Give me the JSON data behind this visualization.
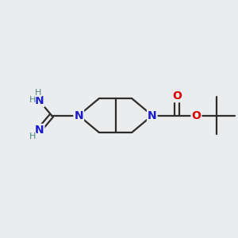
{
  "background_color": "#eaeced",
  "bond_color": "#2d2d2d",
  "nitrogen_color": "#1a1acc",
  "oxygen_color": "#dd0000",
  "figsize": [
    3.0,
    3.0
  ],
  "dpi": 100,
  "xlim": [
    0,
    10
  ],
  "ylim": [
    0,
    10
  ]
}
